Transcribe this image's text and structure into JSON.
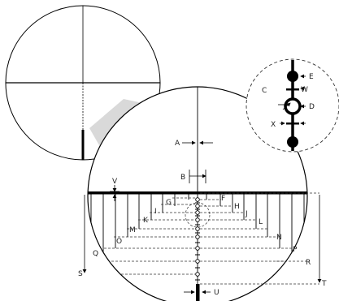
{
  "labels": {
    "A": "A",
    "B": "B",
    "C": "C",
    "D": "D",
    "E": "E",
    "F": "F",
    "G": "G",
    "H": "H",
    "I": "I",
    "J": "J",
    "K": "K",
    "L": "L",
    "M": "M",
    "N": "N",
    "O": "O",
    "P": "P",
    "Q": "Q",
    "R": "R",
    "S": "S",
    "T": "T",
    "U": "U",
    "V": "V",
    "W": "W",
    "X": "X"
  },
  "colors": {
    "line": "#000000",
    "dashed": "#333333",
    "callout_fill": "#d9d9d9",
    "background": "#ffffff"
  }
}
